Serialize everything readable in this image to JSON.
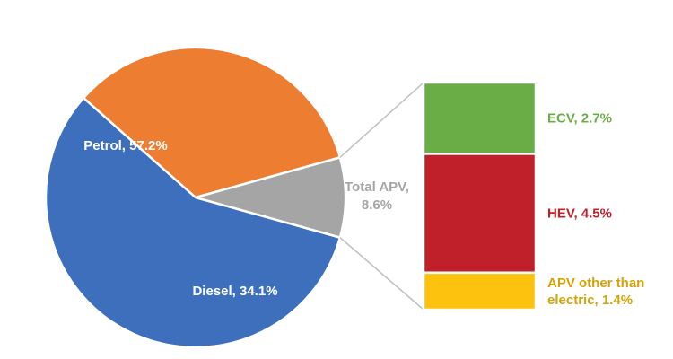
{
  "chart_data": {
    "type": "bar-of-pie",
    "pie": {
      "slices": [
        {
          "name": "Petrol",
          "value": 57.2,
          "label": "Petrol, 57.2%",
          "color": "#3d6fbc",
          "label_color": "#ffffff"
        },
        {
          "name": "Diesel",
          "value": 34.1,
          "label": "Diesel, 34.1%",
          "color": "#ed7d31",
          "label_color": "#ffffff"
        },
        {
          "name": "Total APV",
          "value": 8.6,
          "label_lines": [
            "Total APV,",
            "8.6%"
          ],
          "color": "#a5a5a5",
          "label_color": "#a5a5a5"
        }
      ]
    },
    "bar": {
      "segments": [
        {
          "name": "ECV",
          "value": 2.7,
          "label_lines": [
            "ECV, 2.7%"
          ],
          "color": "#6aad47",
          "label_color": "#6aad47"
        },
        {
          "name": "HEV",
          "value": 4.5,
          "label_lines": [
            "HEV, 4.5%"
          ],
          "color": "#c0202a",
          "label_color": "#c0202a"
        },
        {
          "name": "APV other than electric",
          "value": 1.4,
          "label_lines": [
            "APV other than",
            "electric, 1.4%"
          ],
          "color": "#fcc20d",
          "label_color": "#d4a20a"
        }
      ]
    },
    "connector_color": "#bfbfbf"
  }
}
